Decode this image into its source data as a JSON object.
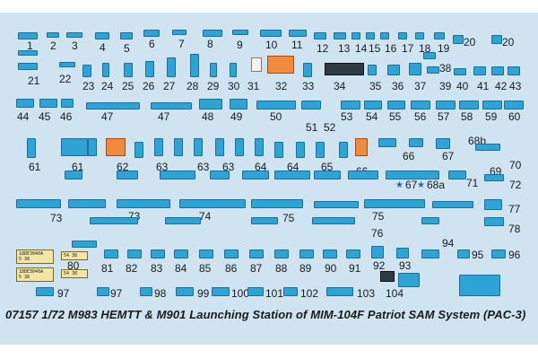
{
  "caption": "07157 1/72 M983 HEMTT & M901 Launching Station of MIM-104F Patriot SAM System (PAC-3)",
  "numbers": [
    "1",
    "2",
    "3",
    "4",
    "5",
    "6",
    "7",
    "8",
    "9",
    "10",
    "11",
    "12",
    "13",
    "14",
    "15",
    "16",
    "17",
    "18",
    "19",
    "20",
    "20",
    "21",
    "22",
    "23",
    "24",
    "25",
    "26",
    "27",
    "28",
    "29",
    "30",
    "31",
    "32",
    "33",
    "34",
    "35",
    "36",
    "37",
    "38",
    "39",
    "40",
    "41",
    "42",
    "43",
    "44",
    "45",
    "46",
    "47",
    "47",
    "48",
    "49",
    "50",
    "51",
    "52",
    "53",
    "54",
    "55",
    "56",
    "57",
    "58",
    "59",
    "60",
    "61",
    "61",
    "62",
    "63",
    "63",
    "63",
    "64",
    "64",
    "65",
    "66",
    "66",
    "67",
    "67",
    "68a",
    "68b",
    "69",
    "70",
    "71",
    "72",
    "73",
    "73",
    "74",
    "75",
    "75",
    "76",
    "77",
    "78",
    "79",
    "80",
    "81",
    "82",
    "83",
    "84",
    "85",
    "86",
    "87",
    "88",
    "89",
    "90",
    "91",
    "92",
    "93",
    "94",
    "95",
    "96",
    "97",
    "97",
    "98",
    "99",
    "100",
    "101",
    "102",
    "103",
    "104"
  ],
  "plates": [
    "18DE3040A",
    "5 38",
    "18DE3040A",
    "5 38",
    "54 38",
    "54 38"
  ],
  "colors": {
    "sheet": "#cfe3f0",
    "decal": "#2ea3d6",
    "decal_border": "#1b6f99",
    "orange": "#f08a3c",
    "yellow": "#f3e5a6"
  }
}
